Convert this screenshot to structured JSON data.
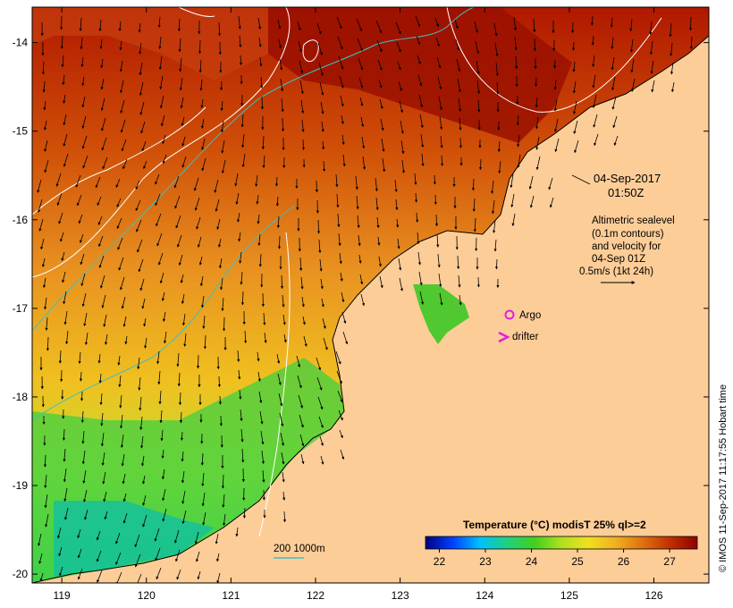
{
  "map": {
    "lon_range": [
      118.65,
      126.65
    ],
    "lat_range": [
      -20.1,
      -13.6
    ],
    "lon_ticks": [
      "119",
      "120",
      "121",
      "122",
      "123",
      "124",
      "125",
      "126"
    ],
    "lat_ticks": [
      "-14",
      "-15",
      "-16",
      "-17",
      "-18",
      "-19",
      "-20"
    ],
    "land_color": "#fdcd98"
  },
  "timestamp": {
    "date": "04-Sep-2017",
    "time": "01:50Z"
  },
  "altimetry_note": {
    "line1": "Altimetric sealevel",
    "line2": "(0.1m contours)",
    "line3": "and velocity for",
    "line4": "04-Sep 01Z",
    "line5": "0.5m/s (1kt 24h)"
  },
  "legend": {
    "argo_label": "Argo",
    "drifter_label": "drifter",
    "argo_color": "#e020e0",
    "drifter_color": "#e020e0"
  },
  "isobath_label": "200  1000m",
  "isobath_color": "#40c0c0",
  "colorbar": {
    "title": "Temperature (°C) modisT 25% ql>=2",
    "ticks": [
      "22",
      "23",
      "24",
      "25",
      "26",
      "27"
    ],
    "range": [
      21.7,
      27.6
    ],
    "stops": [
      "#000080",
      "#0040ff",
      "#00c0ff",
      "#20d080",
      "#40d020",
      "#b0e020",
      "#f0e020",
      "#f0b020",
      "#e07010",
      "#c03000",
      "#900000"
    ]
  },
  "credit": "© IMOS 11-Sep-2017 11:17:55 Hobart time"
}
